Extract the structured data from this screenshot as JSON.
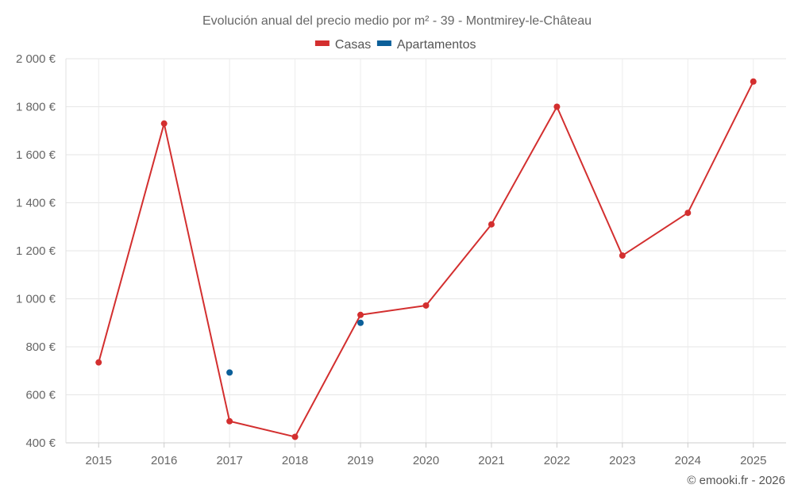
{
  "chart_data": {
    "type": "line",
    "title": "Evolución anual del precio medio por m² - 39 - Montmirey-le-Château",
    "categories": [
      "2015",
      "2016",
      "2017",
      "2018",
      "2019",
      "2020",
      "2021",
      "2022",
      "2023",
      "2024",
      "2025"
    ],
    "series": [
      {
        "name": "Casas",
        "color": "#d32f2f",
        "line": true,
        "values": [
          735,
          1730,
          490,
          425,
          933,
          972,
          1310,
          1800,
          1180,
          1358,
          1905
        ]
      },
      {
        "name": "Apartamentos",
        "color": "#0b5f99",
        "line": false,
        "values": [
          null,
          null,
          693,
          null,
          900,
          null,
          null,
          null,
          null,
          null,
          null
        ]
      }
    ],
    "ylim": [
      400,
      2000
    ],
    "yticks": [
      400,
      600,
      800,
      1000,
      1200,
      1400,
      1600,
      1800,
      2000
    ],
    "ytick_labels": [
      "400 €",
      "600 €",
      "800 €",
      "1 000 €",
      "1 200 €",
      "1 400 €",
      "1 600 €",
      "1 800 €",
      "2 000 €"
    ],
    "xlabel": "",
    "ylabel": "",
    "grid": true,
    "legend": "top-center"
  },
  "credit": "© emooki.fr - 2026"
}
